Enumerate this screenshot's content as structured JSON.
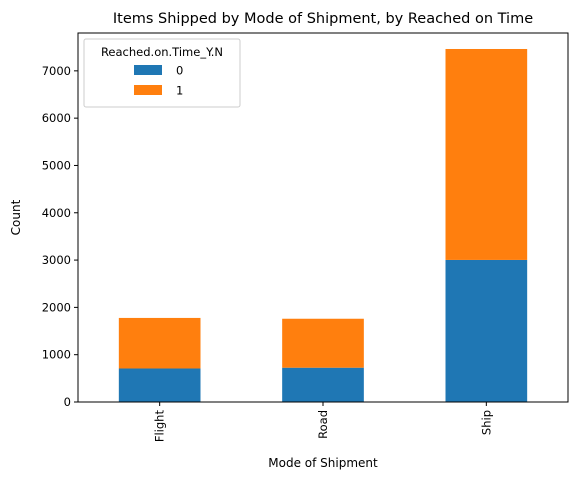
{
  "chart_data": {
    "type": "bar",
    "stacked": true,
    "title": "Items Shipped by Mode of Shipment, by Reached on Time",
    "xlabel": "Mode of Shipment",
    "ylabel": "Count",
    "categories": [
      "Flight",
      "Road",
      "Ship"
    ],
    "series": [
      {
        "name": "0",
        "values": [
          708,
          725,
          3003
        ],
        "color": "#1f77b4"
      },
      {
        "name": "1",
        "values": [
          1069,
          1035,
          4459
        ],
        "color": "#ff7f0e"
      }
    ],
    "ylim": [
      0,
      7800
    ],
    "yticks": [
      0,
      1000,
      2000,
      3000,
      4000,
      5000,
      6000,
      7000
    ],
    "grid": false,
    "legend": {
      "title": "Reached.on.Time_Y.N",
      "placement": "top-left"
    }
  }
}
